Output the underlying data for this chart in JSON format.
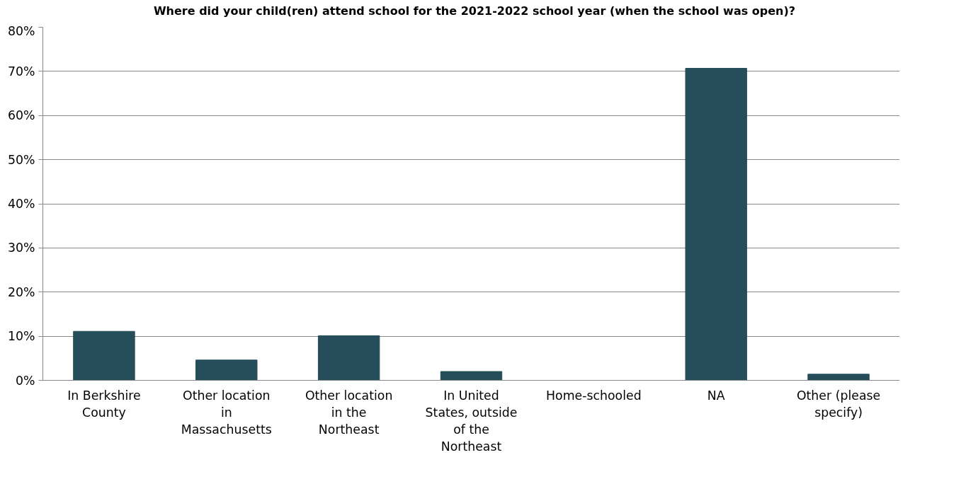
{
  "chart_data": {
    "type": "bar",
    "title": "Where did your child(ren) attend school for the 2021-2022 school year (when the school was open)?",
    "categories": [
      "In Berkshire County",
      "Other location in Massachusetts",
      "Other location in the Northeast",
      "In United States, outside of the Northeast",
      "Home-schooled",
      "NA",
      "Other (please specify)"
    ],
    "values": [
      11.1,
      4.6,
      10.1,
      2.0,
      0,
      70.7,
      1.4
    ],
    "color": "#264d5a",
    "ylim": [
      0,
      80
    ],
    "yticks": [
      {
        "value": 0,
        "label": "0%"
      },
      {
        "value": 10,
        "label": "10%"
      },
      {
        "value": 20,
        "label": "20%"
      },
      {
        "value": 30,
        "label": "30%"
      },
      {
        "value": 40,
        "label": "40%"
      },
      {
        "value": 50,
        "label": "50%"
      },
      {
        "value": 60,
        "label": "60%"
      },
      {
        "value": 70,
        "label": "70%"
      },
      {
        "value": 80,
        "label": "80%"
      }
    ],
    "grid": "y"
  }
}
